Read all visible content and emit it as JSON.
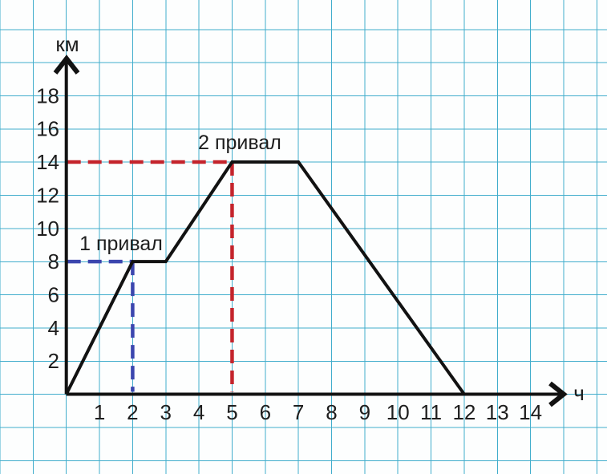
{
  "chart_data": {
    "type": "line",
    "title": "",
    "xlabel": "ч",
    "ylabel": "км",
    "x_ticks": [
      1,
      2,
      3,
      4,
      5,
      6,
      7,
      8,
      9,
      10,
      11,
      12,
      13,
      14
    ],
    "y_ticks": [
      2,
      4,
      6,
      8,
      10,
      12,
      14,
      16,
      18
    ],
    "xlim": [
      0,
      15
    ],
    "ylim": [
      0,
      20
    ],
    "grid": true,
    "series": [
      {
        "points": [
          [
            0,
            0
          ],
          [
            2,
            8
          ],
          [
            3,
            8
          ],
          [
            5,
            14
          ],
          [
            7,
            14
          ],
          [
            12,
            0
          ]
        ],
        "color": "#121212"
      }
    ],
    "annotations": [
      {
        "label": "1 привал",
        "x": 2,
        "y": 8,
        "color": "#3b46ae",
        "text_color": "#4350b6"
      },
      {
        "label": "2 привал",
        "x": 5,
        "y": 14,
        "color": "#c4242c",
        "text_color": "#cc2127"
      }
    ],
    "colors": {
      "grid": "#41adcc",
      "axis": "#121212",
      "text": "#1e1e1e",
      "background": "#fdfefe"
    }
  }
}
